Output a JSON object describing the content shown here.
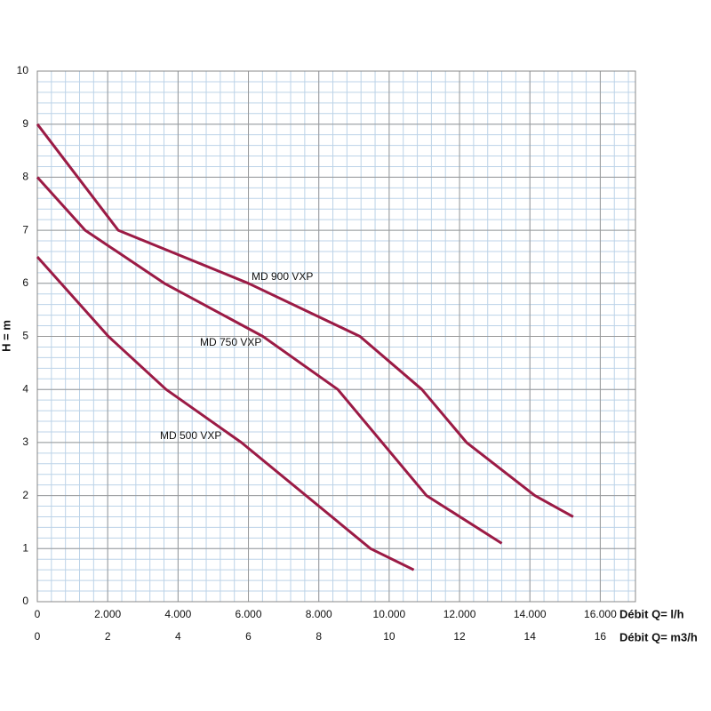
{
  "chart_data": {
    "type": "line",
    "y_label": "H = m",
    "x_label": "Débit  Q= l/h",
    "x2_label": "Débit  Q= m3/h",
    "xlim": [
      0,
      17000
    ],
    "xticks": [
      0,
      {
        "value": 2000,
        "label": "2.000"
      },
      {
        "value": 4000,
        "label": "4.000"
      },
      {
        "value": 6000,
        "label": "6.000"
      },
      {
        "value": 8000,
        "label": "8.000"
      },
      {
        "value": 10000,
        "label": "10.000"
      },
      {
        "value": 12000,
        "label": "12.000"
      },
      {
        "value": 14000,
        "label": "14.000"
      },
      {
        "value": 16000,
        "label": "16.000"
      }
    ],
    "x2lim": [
      0,
      17
    ],
    "x2ticks": [
      0,
      2,
      4,
      6,
      8,
      10,
      12,
      14,
      16
    ],
    "ylim": [
      0,
      10
    ],
    "yticks": [
      0,
      1,
      2,
      3,
      4,
      5,
      6,
      7,
      8,
      9,
      10
    ],
    "grid": true,
    "series": [
      {
        "name": "MD 900 VXP",
        "color": "#9b1b45",
        "x": [
          0,
          2300,
          6000,
          9170,
          10930,
          12200,
          14140,
          15230
        ],
        "values": [
          9,
          7,
          6,
          5,
          4,
          3,
          2,
          1.6
        ]
      },
      {
        "name": "MD 750 VXP",
        "color": "#9b1b45",
        "x": [
          0,
          1360,
          3610,
          6410,
          8540,
          11060,
          13200
        ],
        "values": [
          8,
          7,
          6,
          5,
          4,
          2,
          1.1
        ]
      },
      {
        "name": "MD 500 VXP",
        "color": "#9b1b45",
        "x": [
          0,
          2020,
          3660,
          5800,
          9470,
          10700
        ],
        "values": [
          6.5,
          5,
          4,
          3,
          1,
          0.6
        ]
      }
    ]
  }
}
